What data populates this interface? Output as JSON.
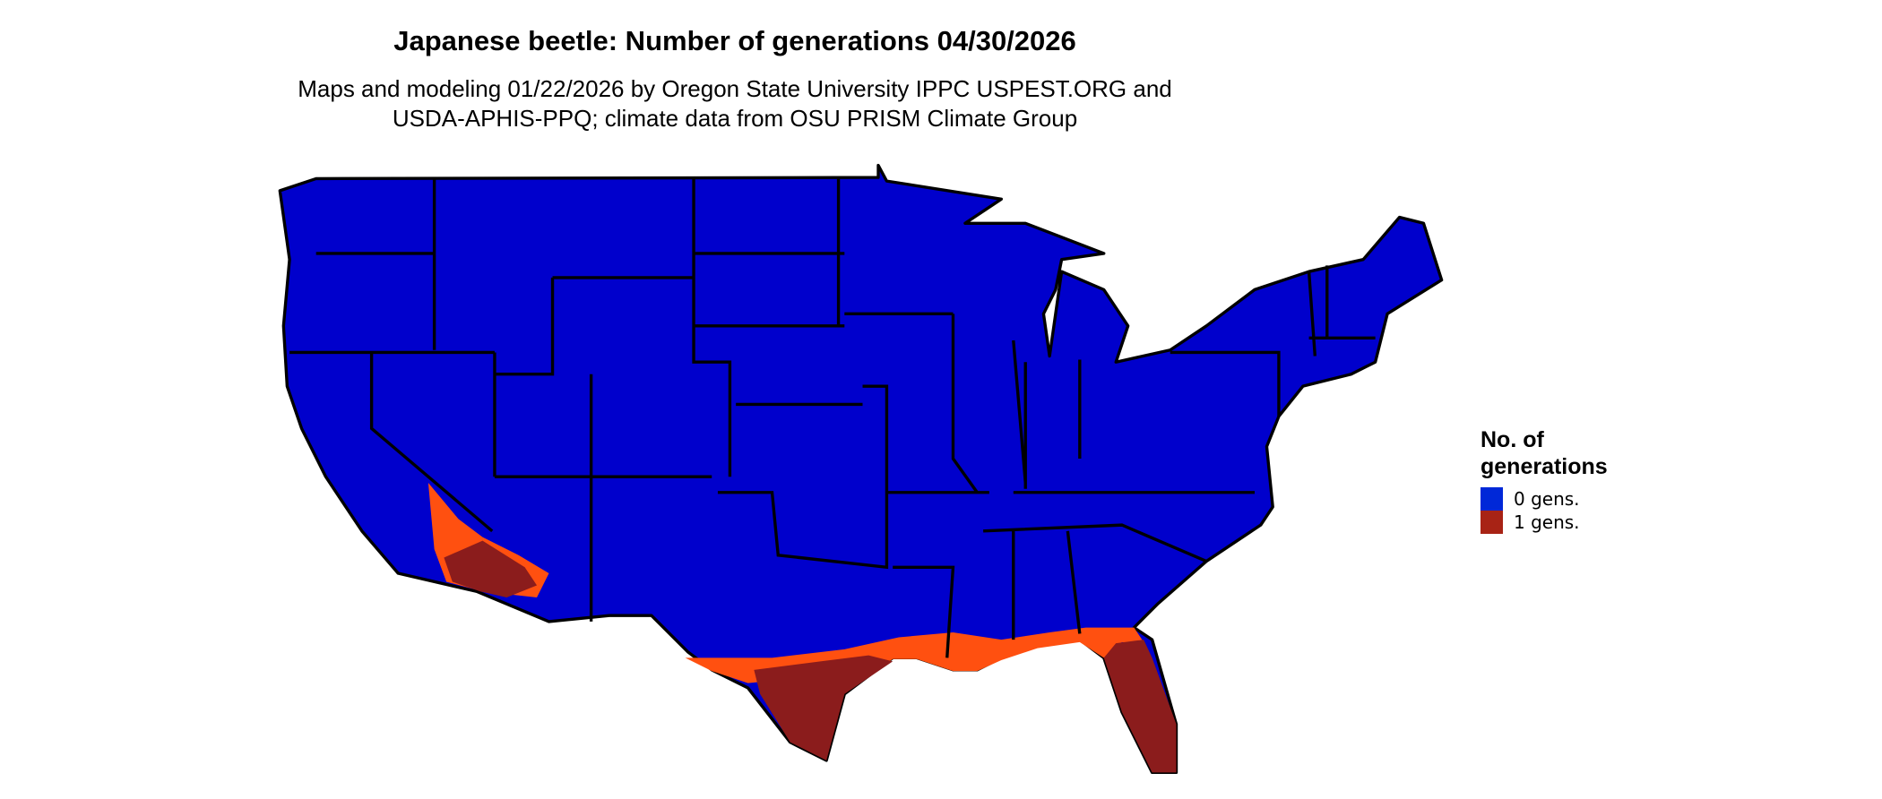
{
  "title": "Japanese beetle: Number of generations 04/30/2026",
  "subtitle_line1": "Maps and modeling 01/22/2026 by Oregon State University IPPC USPEST.ORG and",
  "subtitle_line2": "USDA-APHIS-PPQ; climate data from OSU PRISM Climate Group",
  "legend": {
    "title_line1": "No. of",
    "title_line2": "generations",
    "items": [
      {
        "label": "0 gens.",
        "color": "#0028d8"
      },
      {
        "label": "1 gens.",
        "color": "#a82315"
      }
    ]
  },
  "map_colors": {
    "zero_gens": "#0000cc",
    "one_gen": "#8b1c1c",
    "transition": "#ff5010",
    "borders": "#000000"
  }
}
